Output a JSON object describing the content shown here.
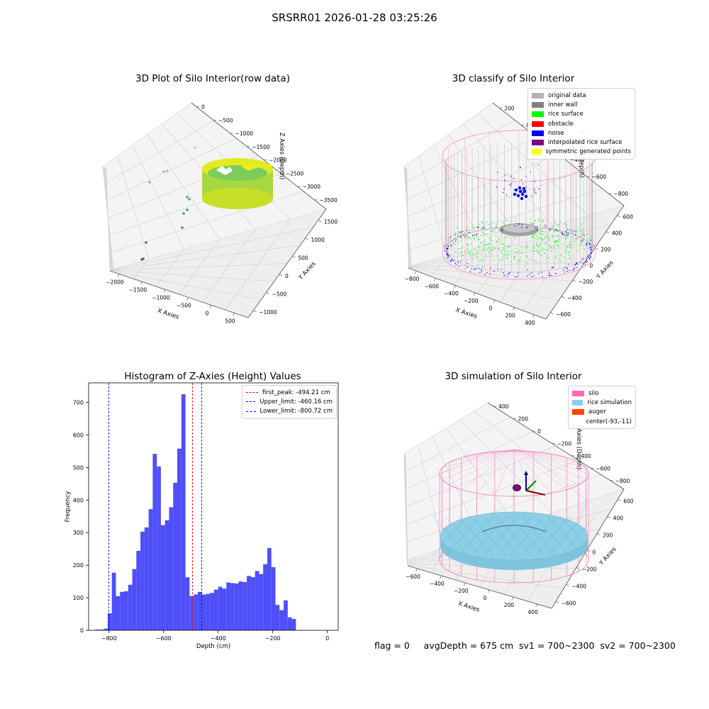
{
  "suptitle": "SRSRR01 2026-01-28 03:25:26",
  "panel1": {
    "title": "3D Plot of Silo Interior(row data)",
    "xlabel": "X Axies",
    "ylabel": "Y Axies",
    "zlabel": "Z Axies (Depth)",
    "xticks": [
      "−2000",
      "−1500",
      "−1000",
      "−500",
      "0",
      "500"
    ],
    "yticks": [
      "−1000",
      "−500",
      "0",
      "500",
      "1000",
      "1500"
    ],
    "zticks": [
      "0",
      "−500",
      "−1000",
      "−1500",
      "−2000",
      "−2500",
      "−3000",
      "−3500"
    ]
  },
  "panel2": {
    "title": "3D classify of Silo Interior",
    "xlabel": "X Axies",
    "ylabel": "Y Axies",
    "zlabel": "Z Axies (Depth)",
    "xticks": [
      "−800",
      "−600",
      "−400",
      "−200",
      "0",
      "200",
      "400"
    ],
    "yticks": [
      "−600",
      "−400",
      "−200",
      "0",
      "200",
      "400",
      "600"
    ],
    "zticks": [
      "200",
      "0",
      "−200",
      "−400",
      "−600",
      "−800"
    ],
    "legend": [
      {
        "label": "original data",
        "color": "#b4b4b4"
      },
      {
        "label": "inner wall",
        "color": "#808080"
      },
      {
        "label": "rice surface",
        "color": "#00ff00"
      },
      {
        "label": "obstacle",
        "color": "#ff0000"
      },
      {
        "label": "noise",
        "color": "#0000ff"
      },
      {
        "label": "interpolated rice surface",
        "color": "#800080"
      },
      {
        "label": "symmetric generated points",
        "color": "#ffff00"
      }
    ]
  },
  "panel3": {
    "title": "Histogram of Z-Axies (Height) Values",
    "legend": [
      {
        "label": "first_peak: -494.21 cm",
        "color": "#ff0000"
      },
      {
        "label": "Upper_limit: -460.16 cm",
        "color": "#0000ff"
      },
      {
        "label": "Lower_limit: -800.72 cm",
        "color": "#0000ff"
      }
    ]
  },
  "panel4": {
    "title": "3D simulation of Silo Interior",
    "xlabel": "X Axies",
    "ylabel": "Y Axies",
    "zlabel": "Z Axies (Depth)",
    "xticks": [
      "−600",
      "−400",
      "−200",
      "0",
      "200",
      "400"
    ],
    "yticks": [
      "−600",
      "−400",
      "−200",
      "0",
      "200",
      "400",
      "600"
    ],
    "zticks": [
      "400",
      "200",
      "0",
      "−200",
      "−400",
      "−600",
      "−800"
    ],
    "legend": [
      {
        "label": "silo",
        "color": "#ff69b4"
      },
      {
        "label": "rice simulation",
        "color": "#87ceeb"
      },
      {
        "label": "auger",
        "color": "#ff4500"
      },
      {
        "label": "center(-93,-11)",
        "color": "#ffffff"
      }
    ]
  },
  "status": {
    "flag": "flag = 0",
    "avg": "avgDepth = 675 cm",
    "sv1": "sv1 = 700~2300",
    "sv2": "sv2 = 700~2300"
  },
  "chart_data": {
    "type": "bar",
    "title": "Histogram of Z-Axies (Height) Values",
    "xlabel": "Depth (cm)",
    "ylabel": "Frequency",
    "xlim": [
      -875,
      40
    ],
    "ylim": [
      0,
      760
    ],
    "xticks": [
      -800,
      -600,
      -400,
      -200,
      0
    ],
    "yticks": [
      0,
      100,
      200,
      300,
      400,
      500,
      600,
      700
    ],
    "bin_edges_start": -850,
    "bin_width": 15,
    "values": [
      2,
      2,
      5,
      52,
      177,
      105,
      118,
      120,
      140,
      188,
      244,
      303,
      316,
      372,
      542,
      503,
      323,
      338,
      378,
      453,
      558,
      725,
      163,
      105,
      110,
      118,
      110,
      112,
      115,
      125,
      134,
      128,
      147,
      145,
      144,
      150,
      148,
      167,
      163,
      182,
      173,
      203,
      253,
      194,
      78,
      62,
      92,
      40,
      35
    ],
    "vlines": [
      {
        "name": "first_peak",
        "x": -494.21,
        "color": "#ff0000"
      },
      {
        "name": "Upper_limit",
        "x": -460.16,
        "color": "#0000ff"
      },
      {
        "name": "Lower_limit",
        "x": -800.72,
        "color": "#0000ff"
      }
    ]
  }
}
